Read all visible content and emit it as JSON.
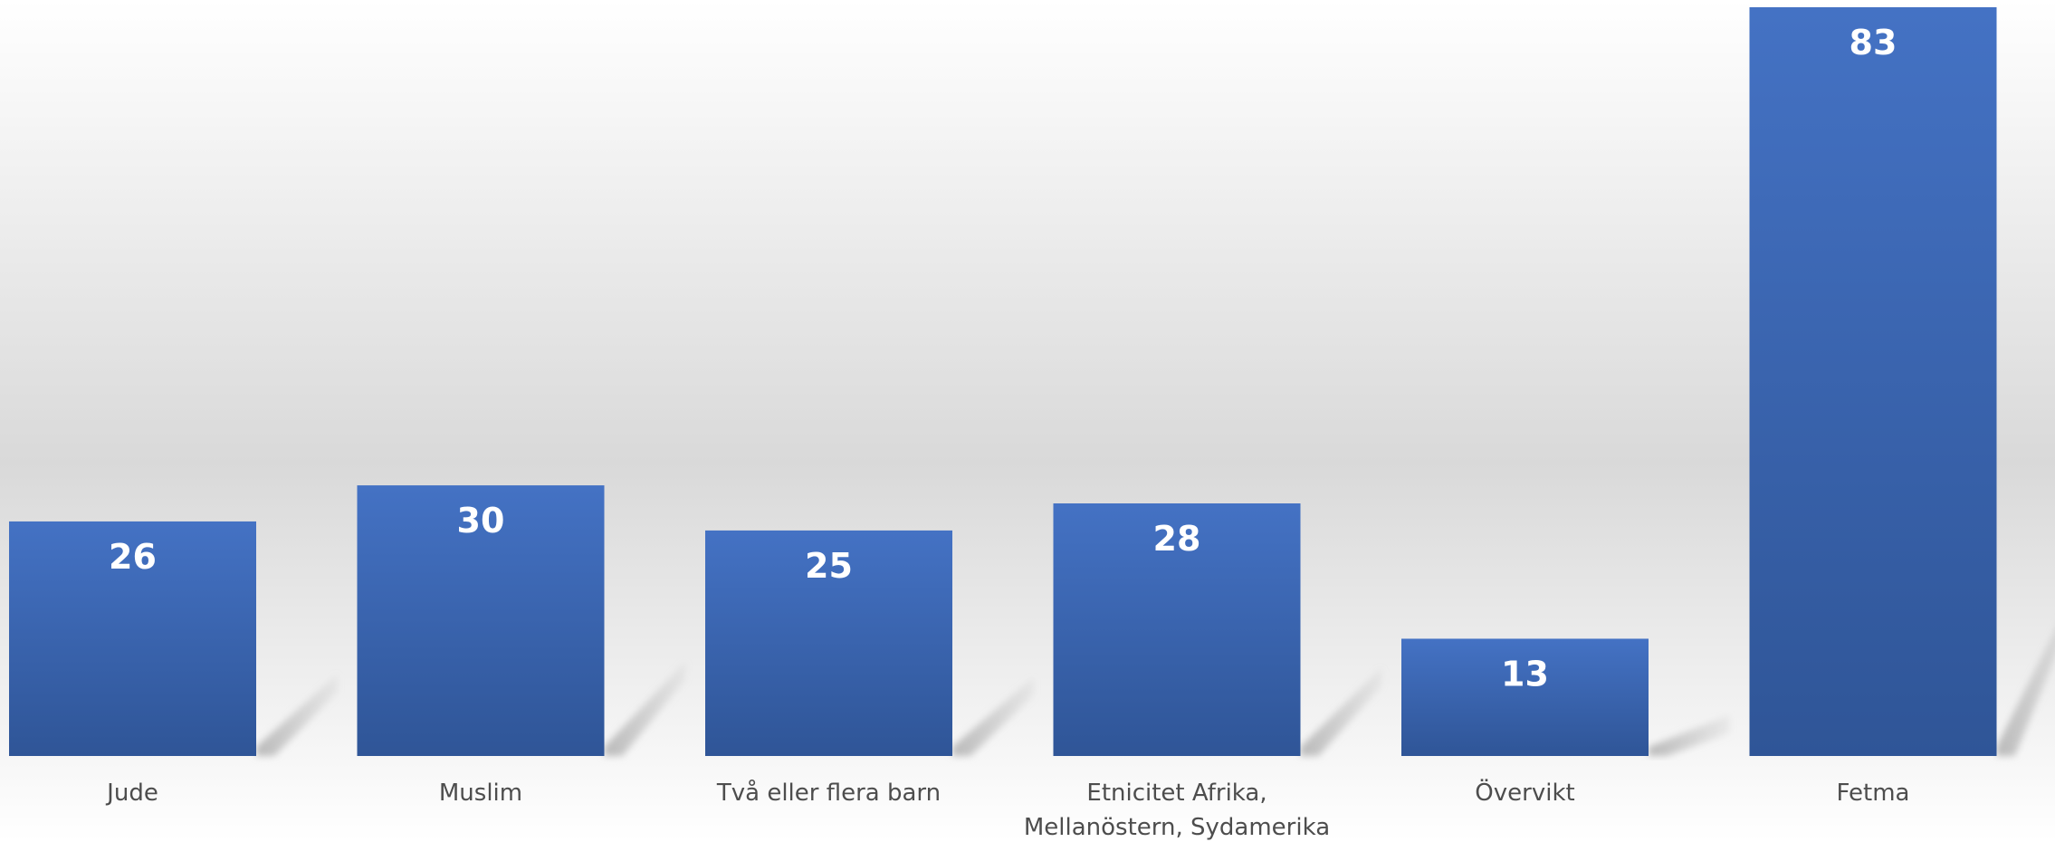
{
  "chart_data": {
    "type": "bar",
    "categories": [
      "Jude",
      "Muslim",
      "Två eller flera barn",
      "Etnicitet Afrika, Mellanöstern, Sydamerika",
      "Övervikt",
      "Fetma"
    ],
    "values": [
      26,
      30,
      25,
      28,
      13,
      83
    ],
    "data_labels": [
      "26",
      "30",
      "25",
      "28",
      "13",
      "83"
    ],
    "title": "",
    "xlabel": "",
    "ylabel": "",
    "ylim": [
      0,
      83
    ],
    "grid": false,
    "legend": "none",
    "colors": {
      "bar_top": "#4472c4",
      "bar_bottom": "#2f5597",
      "shadow": "#b3b3b3",
      "background_light": "#ffffff",
      "background_mid": "#d9d9d9",
      "label_text": "#4d4d4d",
      "value_text": "#ffffff"
    }
  }
}
